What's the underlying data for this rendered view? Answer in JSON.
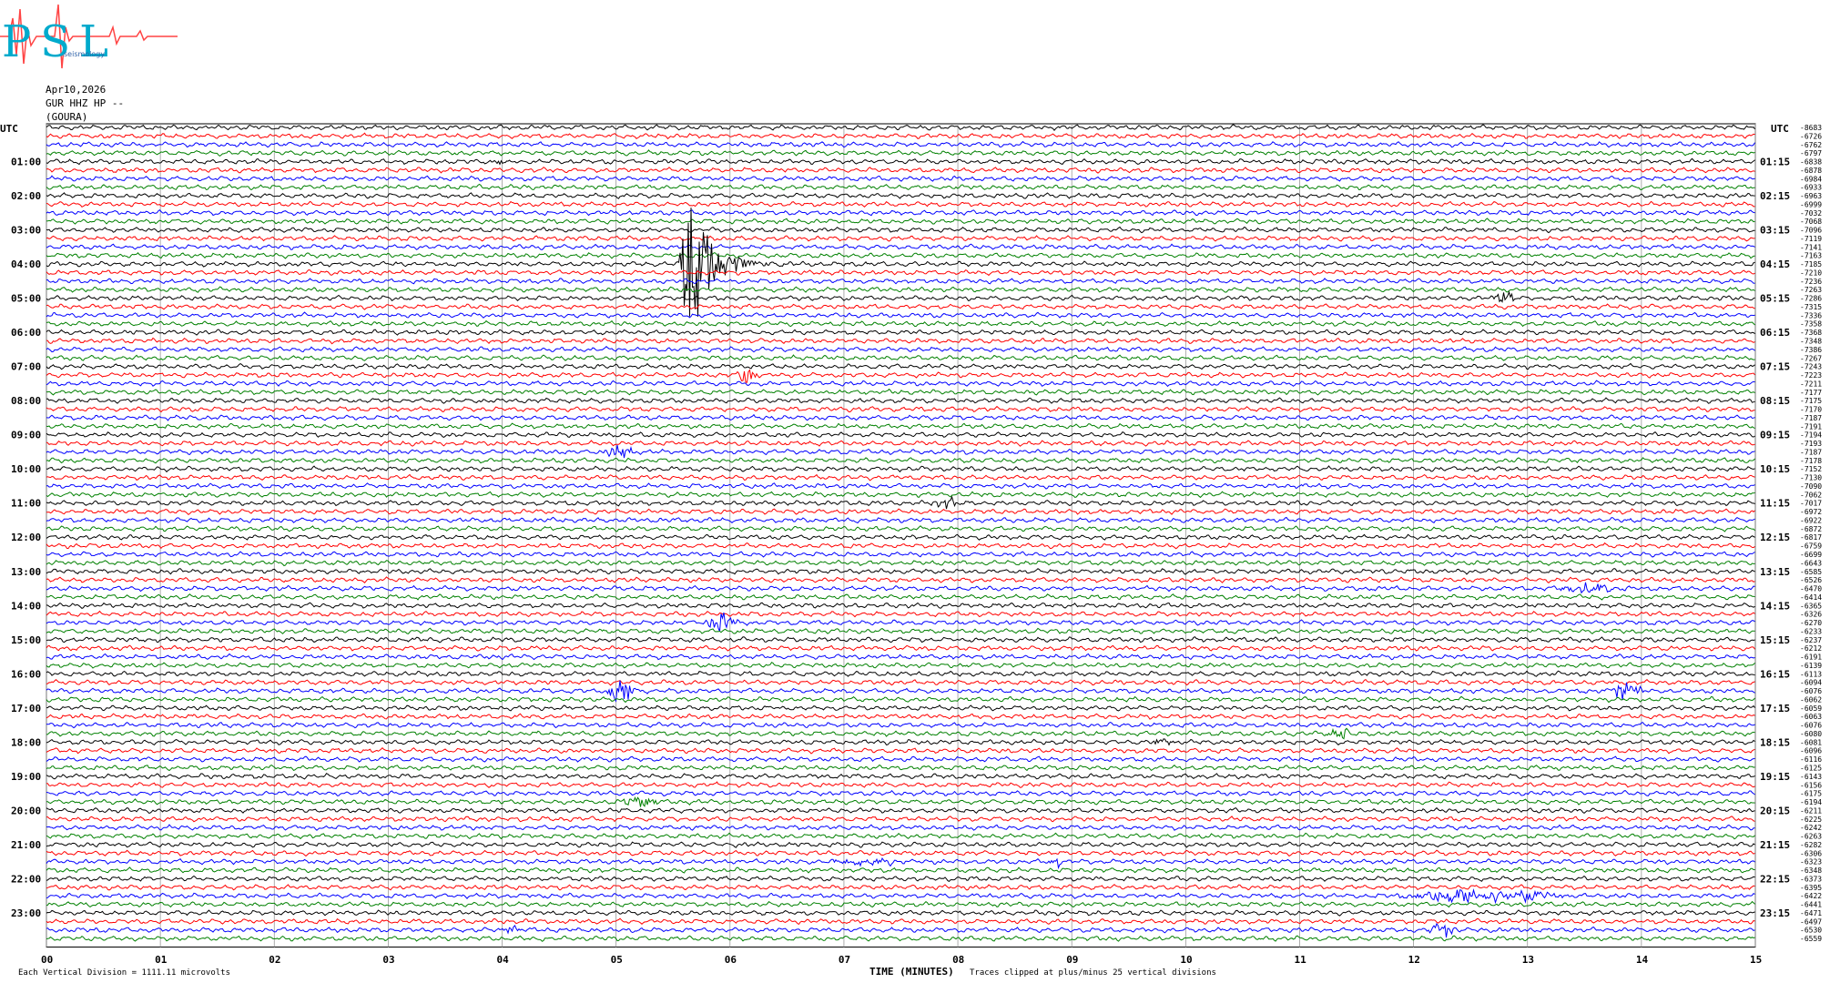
{
  "header": {
    "logo_text": "PSL",
    "logo_subtext": "seismology",
    "date": "Apr10,2026",
    "station": "GUR HHZ HP --",
    "site": "(GOURA)"
  },
  "colors": {
    "trace_cycle": [
      "#000000",
      "#ff0000",
      "#0000ff",
      "#008000"
    ],
    "grid": "#999999",
    "logo_cyan": "#00aacc",
    "logo_red": "#ff4444"
  },
  "chart_data": {
    "type": "line",
    "title": "",
    "xlabel": "TIME (MINUTES)",
    "xlim": [
      0,
      15
    ],
    "x_ticks": [
      "00",
      "01",
      "02",
      "03",
      "04",
      "05",
      "06",
      "07",
      "08",
      "09",
      "10",
      "11",
      "12",
      "13",
      "14",
      "15"
    ],
    "left_axis_label": "UTC",
    "right_axis_label": "UTC",
    "left_hour_labels": [
      "01:00",
      "02:00",
      "03:00",
      "04:00",
      "05:00",
      "06:00",
      "07:00",
      "08:00",
      "09:00",
      "10:00",
      "11:00",
      "12:00",
      "13:00",
      "14:00",
      "15:00",
      "16:00",
      "17:00",
      "18:00",
      "19:00",
      "20:00",
      "21:00",
      "22:00",
      "23:00"
    ],
    "right_hour_labels": [
      "01:15",
      "02:15",
      "03:15",
      "04:15",
      "05:15",
      "06:15",
      "07:15",
      "08:15",
      "09:15",
      "10:15",
      "11:15",
      "12:15",
      "13:15",
      "14:15",
      "15:15",
      "16:15",
      "17:15",
      "18:15",
      "19:15",
      "20:15",
      "21:15",
      "22:15",
      "23:15"
    ],
    "rows": 96,
    "rows_per_hour": 4,
    "right_values": [
      "-8683",
      "-6726",
      "-6762",
      "-6797",
      "-6838",
      "-6878",
      "-6984",
      "-6933",
      "-6963",
      "-6999",
      "-7032",
      "-7068",
      "-7096",
      "-7119",
      "-7141",
      "-7163",
      "-7185",
      "-7210",
      "-7236",
      "-7263",
      "-7286",
      "-7315",
      "-7336",
      "-7358",
      "-7368",
      "-7348",
      "-7386",
      "-7267",
      "-7243",
      "-7223",
      "-7211",
      "-7177",
      "-7175",
      "-7170",
      "-7187",
      "-7191",
      "-7194",
      "-7193",
      "-7187",
      "-7178",
      "-7152",
      "-7130",
      "-7090",
      "-7062",
      "-7017",
      "-6972",
      "-6922",
      "-6872",
      "-6817",
      "-6759",
      "-6699",
      "-6643",
      "-6585",
      "-6526",
      "-6470",
      "-6414",
      "-6365",
      "-6326",
      "-6270",
      "-6233",
      "-6237",
      "-6212",
      "-6191",
      "-6139",
      "-6113",
      "-6094",
      "-6076",
      "-6062",
      "-6059",
      "-6063",
      "-6076",
      "-6080",
      "-6081",
      "-6096",
      "-6116",
      "-6125",
      "-6143",
      "-6156",
      "-6175",
      "-6194",
      "-6211",
      "-6225",
      "-6242",
      "-6263",
      "-6282",
      "-6306",
      "-6323",
      "-6348",
      "-6373",
      "-6395",
      "-6422",
      "-6441",
      "-6471",
      "-6497",
      "-6530",
      "-6559"
    ],
    "events": [
      {
        "row": 16,
        "minute": 5.55,
        "duration": 1.4,
        "amplitude": 75,
        "decay": 2.6,
        "onset_amp": 118
      },
      {
        "row": 20,
        "minute": 12.7,
        "duration": 0.2,
        "amplitude": 9
      },
      {
        "row": 29,
        "minute": 6.05,
        "duration": 0.2,
        "amplitude": 8
      },
      {
        "row": 38,
        "minute": 4.88,
        "duration": 0.3,
        "amplitude": 7
      },
      {
        "row": 44,
        "minute": 7.75,
        "duration": 0.3,
        "amplitude": 7
      },
      {
        "row": 54,
        "minute": 13.2,
        "duration": 0.7,
        "amplitude": 5
      },
      {
        "row": 58,
        "minute": 5.78,
        "duration": 0.3,
        "amplitude": 10
      },
      {
        "row": 66,
        "minute": 4.9,
        "duration": 0.3,
        "amplitude": 12
      },
      {
        "row": 66,
        "minute": 13.72,
        "duration": 0.3,
        "amplitude": 12
      },
      {
        "row": 72,
        "minute": 9.7,
        "duration": 0.2,
        "amplitude": 4
      },
      {
        "row": 71,
        "minute": 11.2,
        "duration": 0.3,
        "amplitude": 5
      },
      {
        "row": 79,
        "minute": 5.0,
        "duration": 0.4,
        "amplitude": 5
      },
      {
        "row": 86,
        "minute": 8.8,
        "duration": 0.1,
        "amplitude": 10
      },
      {
        "row": 86,
        "minute": 6.8,
        "duration": 0.8,
        "amplitude": 3
      },
      {
        "row": 90,
        "minute": 11.8,
        "duration": 1.6,
        "amplitude": 7
      },
      {
        "row": 94,
        "minute": 12.1,
        "duration": 0.3,
        "amplitude": 7
      },
      {
        "row": 94,
        "minute": 3.98,
        "duration": 0.2,
        "amplitude": 5
      },
      {
        "row": 4,
        "minute": 3.9,
        "duration": 0.2,
        "amplitude": 3
      }
    ]
  },
  "footer": {
    "scale_note": "Each Vertical Division = 1111.11 microvolts",
    "clip_note": "Traces clipped at plus/minus 25 vertical divisions"
  }
}
